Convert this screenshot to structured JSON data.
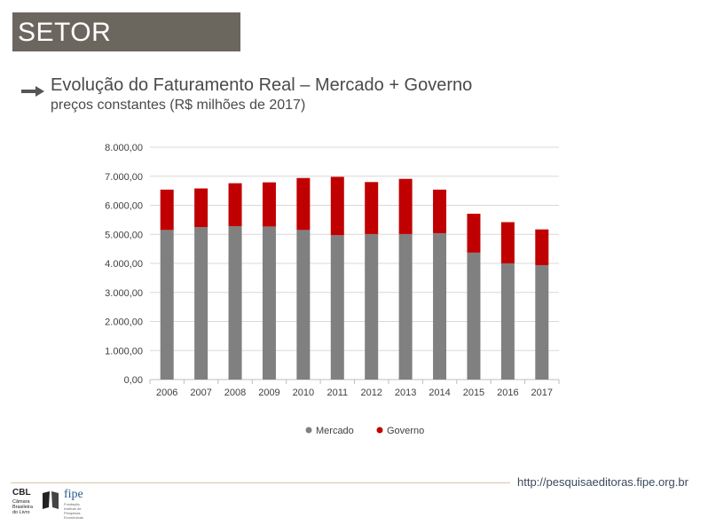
{
  "header": {
    "title": "SETOR"
  },
  "heading": {
    "title": "Evolução do Faturamento Real – Mercado + Governo",
    "subtitle": "preços constantes (R$ milhões de 2017)"
  },
  "colors": {
    "mercado": "#808080",
    "governo": "#c00000",
    "grid": "#d9d9d9",
    "axis": "#bfbfbf"
  },
  "chart_data": {
    "type": "bar",
    "stacked": true,
    "categories": [
      "2006",
      "2007",
      "2008",
      "2009",
      "2010",
      "2011",
      "2012",
      "2013",
      "2014",
      "2015",
      "2016",
      "2017"
    ],
    "series": [
      {
        "name": "Mercado",
        "values": [
          5150,
          5250,
          5280,
          5270,
          5150,
          4970,
          5010,
          5010,
          5040,
          4370,
          4000,
          3940
        ]
      },
      {
        "name": "Governo",
        "values": [
          1390,
          1330,
          1480,
          1520,
          1790,
          2010,
          1790,
          1900,
          1500,
          1340,
          1420,
          1230
        ]
      }
    ],
    "ylim": [
      0,
      8000
    ],
    "yticks": [
      "0,00",
      "1.000,00",
      "2.000,00",
      "3.000,00",
      "4.000,00",
      "5.000,00",
      "6.000,00",
      "7.000,00",
      "8.000,00"
    ],
    "ytick_values": [
      0,
      1000,
      2000,
      3000,
      4000,
      5000,
      6000,
      7000,
      8000
    ],
    "legend_position": "bottom",
    "grid": true
  },
  "footer": {
    "url": "http://pesquisaeditoras.fipe.org.br",
    "logo_cbl": "CBL",
    "logo_cbl_text": "Câmara Brasileira do Livro",
    "logo_snel": "SNEL",
    "logo_fipe": "fipe",
    "logo_fipe_text": "Fundação Instituto de Pesquisas Econômicas"
  }
}
